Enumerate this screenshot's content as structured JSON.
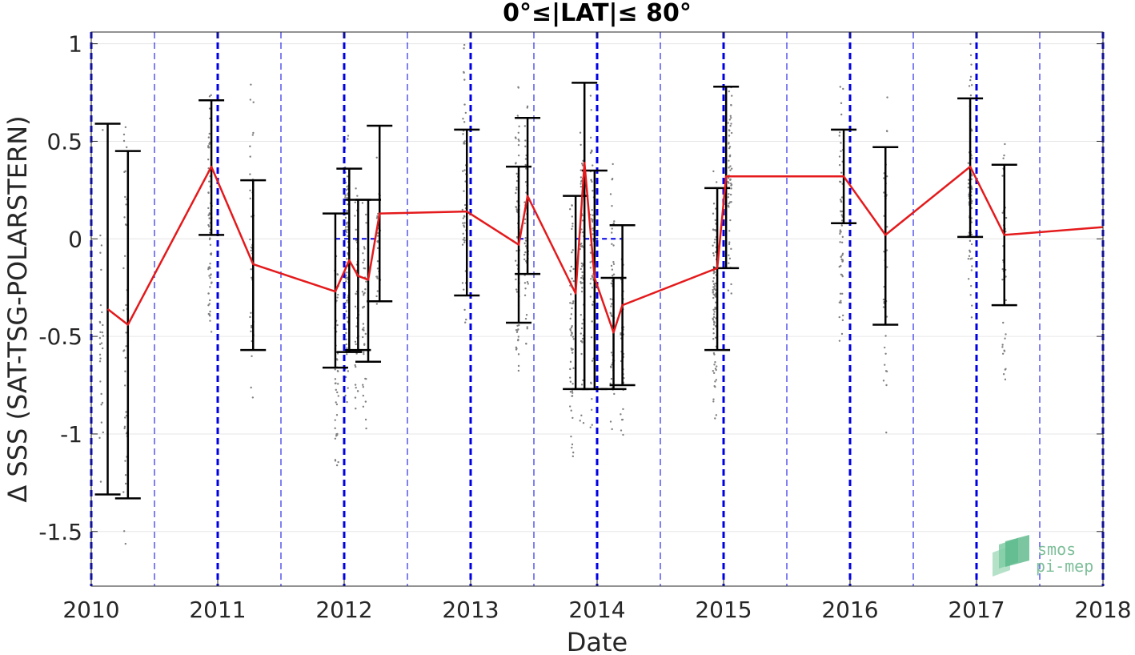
{
  "chart_data": {
    "type": "line",
    "title": "0°≤|LAT|≤ 80°",
    "xlabel": "Date",
    "ylabel": "Δ SSS (SAT-TSG-POLARSTERN)",
    "xlim": [
      2010.0,
      2018.0
    ],
    "ylim": [
      -1.78,
      1.06
    ],
    "x_ticks": [
      2010,
      2011,
      2012,
      2013,
      2014,
      2015,
      2016,
      2017,
      2018
    ],
    "x_tick_labels": [
      "2010",
      "2011",
      "2012",
      "2013",
      "2014",
      "2015",
      "2016",
      "2017",
      "2018"
    ],
    "y_ticks": [
      1,
      0.5,
      0,
      -0.5,
      -1,
      -1.5
    ],
    "y_tick_labels": [
      "1",
      "0.5",
      "0",
      "-0.5",
      "-1",
      "-1.5"
    ],
    "grid": true,
    "year_lines": [
      2010,
      2011,
      2012,
      2013,
      2014,
      2015,
      2016,
      2017,
      2018
    ],
    "half_year_lines": [
      2010.5,
      2011.5,
      2012.5,
      2013.5,
      2014.5,
      2015.5,
      2016.5,
      2017.5
    ],
    "colors": {
      "mean_line": "#e41a1c",
      "error_bar": "#000000",
      "year_line": "#0000e6",
      "scatter": "#808080"
    },
    "series": [
      {
        "x": [
          2010.13,
          2010.29,
          2010.95,
          2011.28,
          2011.93,
          2012.04,
          2012.11,
          2012.19,
          2012.28,
          2012.97,
          2013.38,
          2013.45,
          2013.83,
          2013.9,
          2013.98,
          2014.13,
          2014.2,
          2014.95,
          2015.02,
          2015.95,
          2016.28,
          2016.95,
          2017.22,
          2018.0
        ],
        "y": [
          -0.36,
          -0.44,
          0.37,
          -0.13,
          -0.27,
          -0.11,
          -0.19,
          -0.21,
          0.13,
          0.14,
          -0.03,
          0.22,
          -0.28,
          0.39,
          -0.2,
          -0.48,
          -0.34,
          -0.15,
          0.32,
          0.32,
          0.02,
          0.37,
          0.02,
          0.06
        ]
      }
    ],
    "error_bars": [
      {
        "x": 2010.13,
        "low": -1.31,
        "high": 0.59
      },
      {
        "x": 2010.29,
        "low": -1.33,
        "high": 0.45
      },
      {
        "x": 2010.95,
        "low": 0.02,
        "high": 0.71
      },
      {
        "x": 2011.28,
        "low": -0.57,
        "high": 0.3
      },
      {
        "x": 2011.93,
        "low": -0.66,
        "high": 0.13
      },
      {
        "x": 2012.04,
        "low": -0.58,
        "high": 0.36
      },
      {
        "x": 2012.11,
        "low": -0.57,
        "high": 0.2
      },
      {
        "x": 2012.19,
        "low": -0.63,
        "high": 0.2
      },
      {
        "x": 2012.28,
        "low": -0.32,
        "high": 0.58
      },
      {
        "x": 2012.97,
        "low": -0.29,
        "high": 0.56
      },
      {
        "x": 2013.38,
        "low": -0.43,
        "high": 0.37
      },
      {
        "x": 2013.45,
        "low": -0.18,
        "high": 0.62
      },
      {
        "x": 2013.83,
        "low": -0.77,
        "high": 0.22
      },
      {
        "x": 2013.9,
        "low": -0.77,
        "high": 0.8
      },
      {
        "x": 2013.98,
        "low": -0.77,
        "high": 0.35
      },
      {
        "x": 2014.13,
        "low": -0.77,
        "high": -0.2
      },
      {
        "x": 2014.2,
        "low": -0.75,
        "high": 0.07
      },
      {
        "x": 2014.95,
        "low": -0.57,
        "high": 0.26
      },
      {
        "x": 2015.02,
        "low": -0.15,
        "high": 0.78
      },
      {
        "x": 2015.95,
        "low": 0.08,
        "high": 0.56
      },
      {
        "x": 2016.28,
        "low": -0.44,
        "high": 0.47
      },
      {
        "x": 2016.95,
        "low": 0.01,
        "high": 0.72
      },
      {
        "x": 2017.22,
        "low": -0.34,
        "high": 0.38
      }
    ],
    "scatter_columns": [
      {
        "x": 2010.08,
        "low": -1.65,
        "high": 0.68,
        "count": 28
      },
      {
        "x": 2010.27,
        "low": -1.7,
        "high": 0.97,
        "count": 40
      },
      {
        "x": 2010.94,
        "low": -0.6,
        "high": 0.85,
        "count": 70
      },
      {
        "x": 2011.27,
        "low": -0.95,
        "high": 0.92,
        "count": 40
      },
      {
        "x": 2011.94,
        "low": -1.3,
        "high": 0.05,
        "count": 50
      },
      {
        "x": 2012.02,
        "low": -0.9,
        "high": 0.7,
        "count": 90
      },
      {
        "x": 2012.1,
        "low": -1.0,
        "high": 0.4,
        "count": 40
      },
      {
        "x": 2012.16,
        "low": -1.02,
        "high": 0.3,
        "count": 40
      },
      {
        "x": 2012.27,
        "low": -0.5,
        "high": 0.6,
        "count": 30
      },
      {
        "x": 2012.95,
        "low": -0.5,
        "high": 1.05,
        "count": 45
      },
      {
        "x": 2013.37,
        "low": -0.8,
        "high": 1.0,
        "count": 70
      },
      {
        "x": 2013.44,
        "low": -0.7,
        "high": 1.05,
        "count": 50
      },
      {
        "x": 2013.8,
        "low": -1.25,
        "high": 0.3,
        "count": 60
      },
      {
        "x": 2013.88,
        "low": -1.1,
        "high": 0.75,
        "count": 60
      },
      {
        "x": 2013.96,
        "low": -1.05,
        "high": 0.8,
        "count": 60
      },
      {
        "x": 2014.12,
        "low": -1.1,
        "high": 0.5,
        "count": 50
      },
      {
        "x": 2014.2,
        "low": -1.1,
        "high": 0.05,
        "count": 40
      },
      {
        "x": 2014.93,
        "low": -1.0,
        "high": 0.4,
        "count": 90
      },
      {
        "x": 2015.05,
        "low": -0.3,
        "high": 0.9,
        "count": 60
      },
      {
        "x": 2015.93,
        "low": -0.65,
        "high": 0.82,
        "count": 60
      },
      {
        "x": 2016.28,
        "low": -1.05,
        "high": 0.98,
        "count": 40
      },
      {
        "x": 2016.95,
        "low": -0.5,
        "high": 1.05,
        "count": 80
      },
      {
        "x": 2017.22,
        "low": -0.78,
        "high": 0.6,
        "count": 40
      }
    ]
  },
  "logo": {
    "line1": "smos",
    "line2": "pi-mep"
  }
}
